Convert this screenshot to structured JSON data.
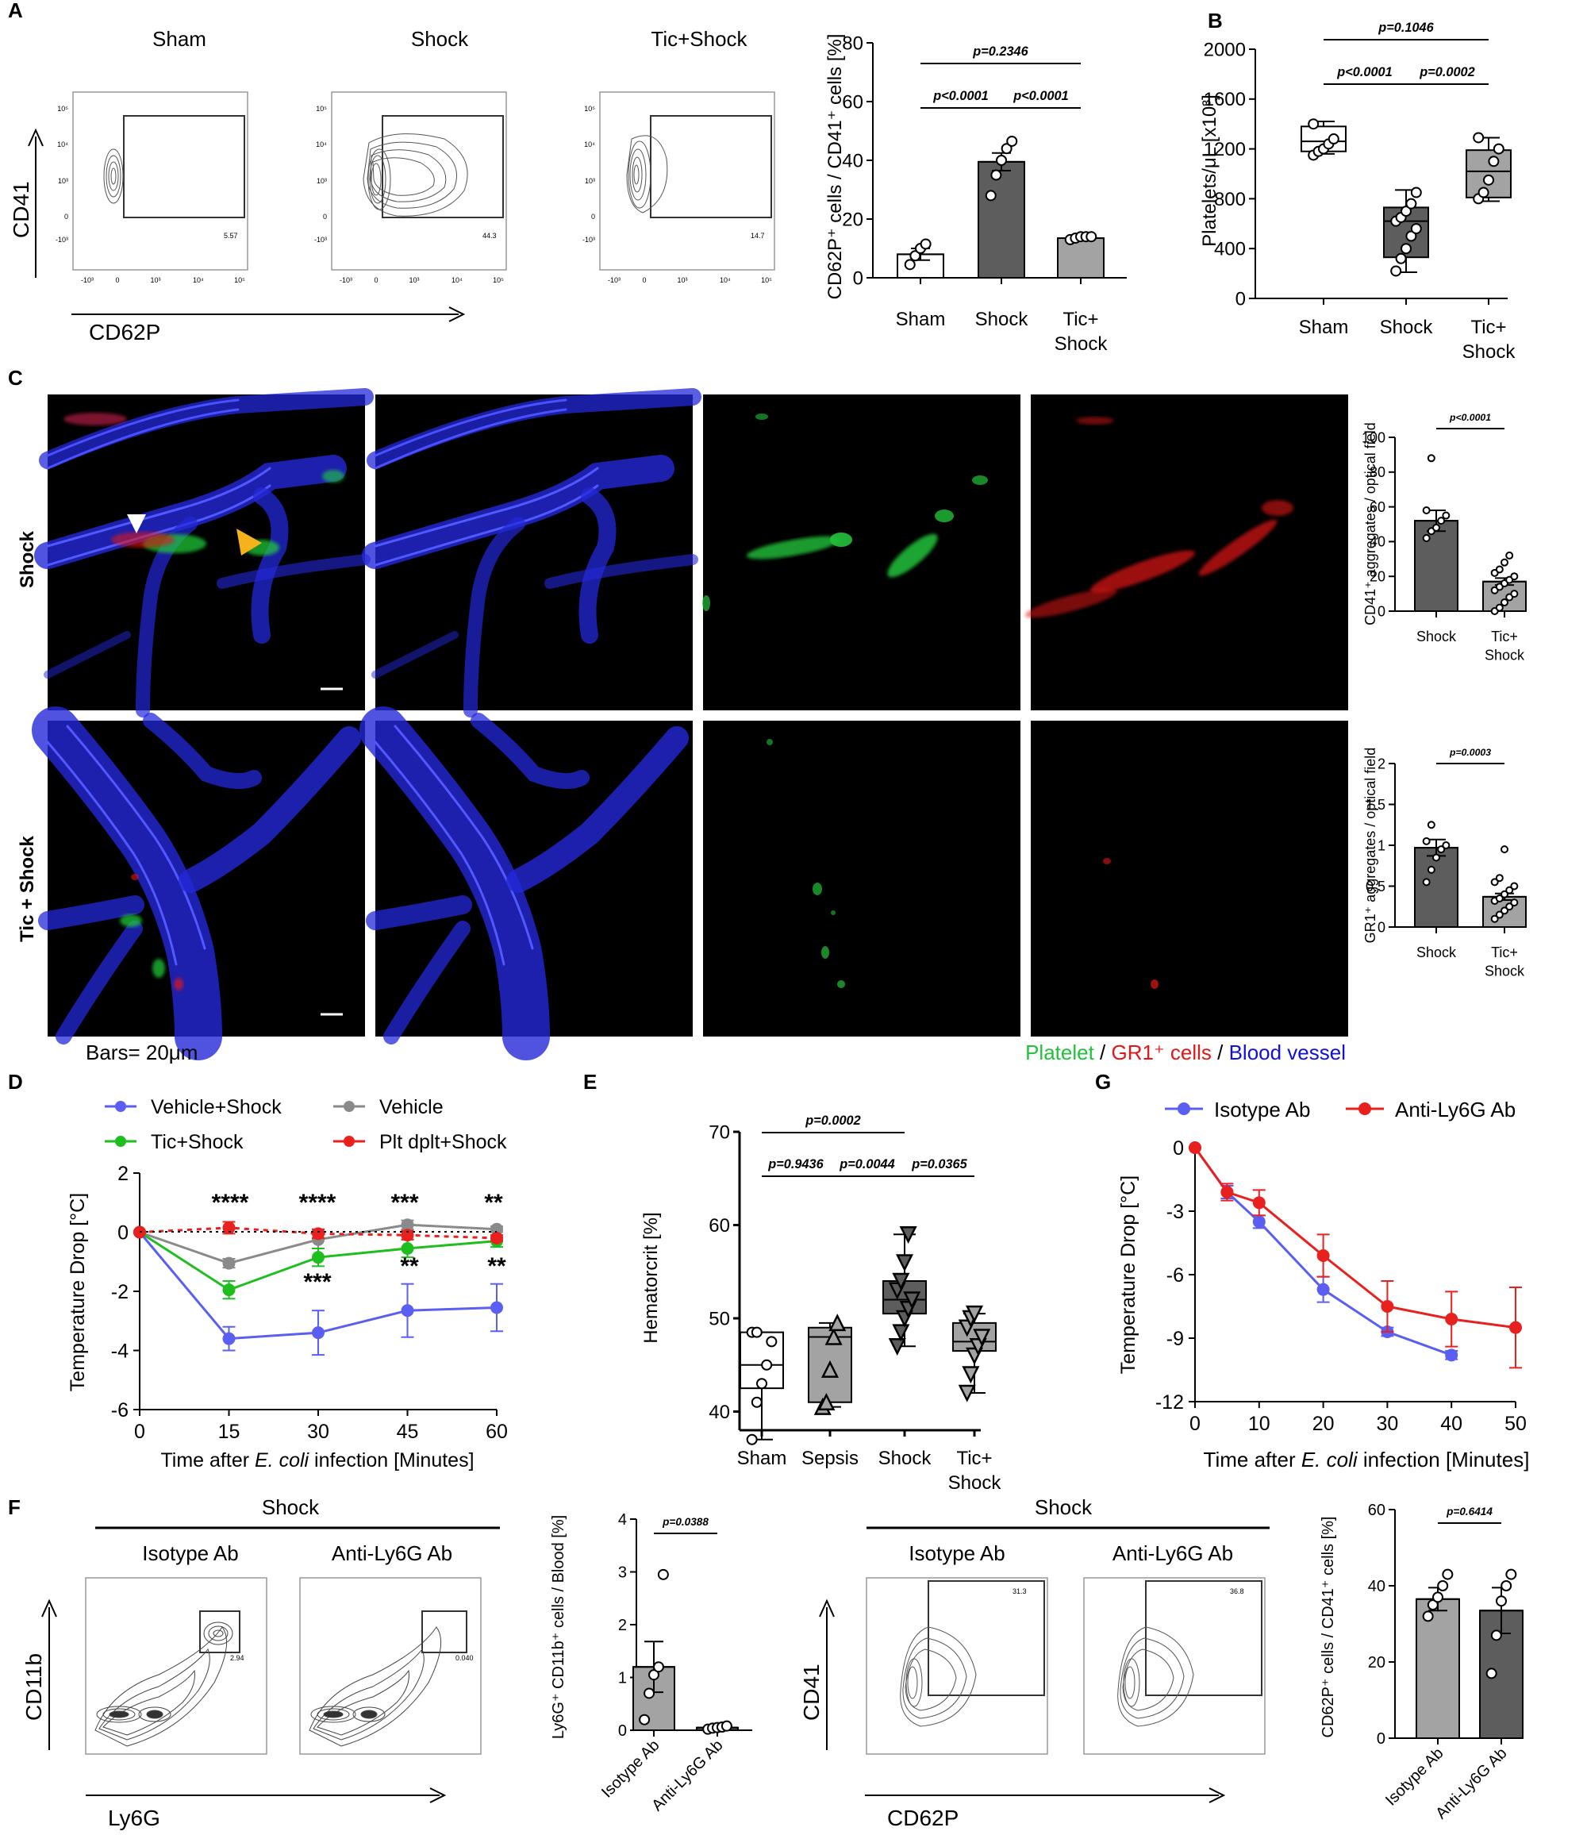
{
  "panel_letters": {
    "A": "A",
    "B": "B",
    "C": "C",
    "D": "D",
    "E": "E",
    "F": "F",
    "G": "G"
  },
  "a": {
    "flow_titles": [
      "Sham",
      "Shock",
      "Tic+Shock"
    ],
    "flow_gates": [
      "5.57",
      "44.3",
      "14.7"
    ],
    "y_axis": "CD41",
    "x_axis": "CD62P",
    "tick_y": [
      "10⁵",
      "10⁴",
      "10³",
      "0",
      "-10³"
    ],
    "tick_x": [
      "-10³",
      "0",
      "10³",
      "10⁴",
      "10⁵"
    ]
  },
  "colors": {
    "white_bar": "#ffffff",
    "dark_bar": "#5d5d5d",
    "light_bar": "#a3a3a3",
    "vehicle_shock": "#5b5ef2",
    "vehicle": "#8a8a8a",
    "tic_shock": "#1fbe1f",
    "plt_shock": "#e8201e",
    "isotype": "#5b5ef2",
    "anti_ly6g": "#e8201e",
    "platelet": "#22c23a",
    "gr1": "#e8201e",
    "vessel": "#1010e0"
  },
  "c": {
    "row_labels": [
      "Shock",
      "Tic + Shock"
    ],
    "bars_label": "Bars= 20μm",
    "legend": [
      "Platelet",
      " / ",
      "GR1⁺ cells",
      " / ",
      "Blood vessel"
    ]
  },
  "d": {
    "legend": [
      "Vehicle+Shock",
      "Vehicle",
      "Tic+Shock",
      "Plt dplt+Shock"
    ],
    "stars_top": [
      "****",
      "****",
      "***",
      "**"
    ],
    "stars_bottom": [
      "***",
      "**",
      "**"
    ],
    "xlabel_pre": "Time after ",
    "xlabel_it": "E. coli",
    "xlabel_post": " infection [Minutes]",
    "ylabel": "Temperature Drop [°C]"
  },
  "e": {
    "ylabel": "Hematorcrit [%]",
    "cats": [
      "Sham",
      "Sepsis",
      "Shock",
      "Tic+",
      "Shock"
    ]
  },
  "g": {
    "legend": [
      "Isotype Ab",
      "Anti-Ly6G Ab"
    ],
    "xlabel_pre": "Time after ",
    "xlabel_it": "E. coli",
    "xlabel_post": " infection [Minutes]",
    "ylabel": "Temperature Drop [°C]"
  },
  "f": {
    "shock": "Shock",
    "flow_titles": [
      "Isotype Ab",
      "Anti-Ly6G Ab"
    ],
    "gates_left": [
      "2.94",
      "0.040"
    ],
    "gates_right": [
      "31.3",
      "36.8"
    ],
    "y_left": "CD11b",
    "x_left": "Ly6G",
    "y_right": "CD41",
    "x_right": "CD62P"
  },
  "chart_data": [
    {
      "id": "A-bar",
      "type": "bar",
      "categories": [
        "Sham",
        "Shock",
        "Tic+ Shock"
      ],
      "values": [
        8,
        39.5,
        13.5
      ],
      "errors": [
        2,
        3,
        0.5
      ],
      "points": [
        [
          4.5,
          7.5,
          10,
          11.5
        ],
        [
          28,
          35,
          40,
          44,
          46.5
        ],
        [
          13,
          13.5,
          14,
          14,
          14
        ]
      ],
      "ylabel": "CD62P⁺ cells / CD41⁺ cells [%]",
      "ylim": [
        0,
        80
      ],
      "yticks": [
        0,
        20,
        40,
        60,
        80
      ],
      "comparisons": [
        {
          "from": 0,
          "to": 2,
          "p": "p=0.2346"
        },
        {
          "from": 0,
          "to": 1,
          "p": "p<0.0001"
        },
        {
          "from": 1,
          "to": 2,
          "p": "p<0.0001"
        }
      ]
    },
    {
      "id": "B-box",
      "type": "box",
      "categories": [
        "Sham",
        "Shock",
        "Tic+ Shock"
      ],
      "boxes": [
        {
          "min": 1160,
          "q1": 1180,
          "median": 1260,
          "q3": 1380,
          "max": 1420
        },
        {
          "min": 210,
          "q1": 330,
          "median": 620,
          "q3": 730,
          "max": 870
        },
        {
          "min": 780,
          "q1": 810,
          "median": 1020,
          "q3": 1190,
          "max": 1290
        }
      ],
      "points": [
        [
          1150,
          1180,
          1200,
          1240,
          1280,
          1400
        ],
        [
          220,
          320,
          400,
          500,
          560,
          620,
          650,
          700,
          760,
          850
        ],
        [
          800,
          850,
          950,
          1100,
          1200,
          1290
        ]
      ],
      "ylabel": "Platelets/μL [x10³]",
      "ylim": [
        0,
        2000
      ],
      "yticks": [
        0,
        400,
        800,
        1200,
        1600,
        2000
      ],
      "comparisons": [
        {
          "from": 0,
          "to": 2,
          "p": "p=0.1046"
        },
        {
          "from": 0,
          "to": 1,
          "p": "p<0.0001"
        },
        {
          "from": 1,
          "to": 2,
          "p": "p=0.0002"
        }
      ]
    },
    {
      "id": "C-bar-top",
      "type": "bar",
      "categories": [
        "Shock",
        "Tic+ Shock"
      ],
      "values": [
        52,
        17
      ],
      "errors": [
        6,
        2
      ],
      "points": [
        [
          42,
          46,
          48,
          52,
          55,
          58,
          88
        ],
        [
          0,
          2,
          5,
          8,
          10,
          12,
          14,
          16,
          18,
          20,
          22,
          24,
          28,
          32
        ]
      ],
      "ylabel": "CD41⁺ aggregates / optical field",
      "ylim": [
        0,
        100
      ],
      "yticks": [
        0,
        20,
        40,
        60,
        80,
        100
      ],
      "comparisons": [
        {
          "from": 0,
          "to": 1,
          "p": "p<0.0001"
        }
      ]
    },
    {
      "id": "C-bar-bottom",
      "type": "bar",
      "categories": [
        "Shock",
        "Tic+ Shock"
      ],
      "values": [
        0.97,
        0.37
      ],
      "errors": [
        0.1,
        0.04
      ],
      "points": [
        [
          0.55,
          0.7,
          0.85,
          0.95,
          1.0,
          1.05,
          1.25
        ],
        [
          0.1,
          0.15,
          0.2,
          0.25,
          0.3,
          0.32,
          0.35,
          0.4,
          0.45,
          0.5,
          0.55,
          0.6,
          0.95
        ]
      ],
      "ylabel": "GR1⁺ aggregates / optical field",
      "ylim": [
        0,
        2
      ],
      "yticks": [
        0,
        0.5,
        1,
        1.5,
        2
      ],
      "comparisons": [
        {
          "from": 0,
          "to": 1,
          "p": "p=0.0003"
        }
      ]
    },
    {
      "id": "D-line",
      "type": "line",
      "x": [
        0,
        15,
        30,
        45,
        60
      ],
      "series": [
        {
          "name": "Vehicle+Shock",
          "values": [
            0,
            -3.6,
            -3.4,
            -2.65,
            -2.55
          ],
          "errors": [
            0,
            0.4,
            0.75,
            0.9,
            0.8
          ]
        },
        {
          "name": "Vehicle",
          "values": [
            0,
            -1.05,
            -0.25,
            0.25,
            0.1
          ],
          "errors": [
            0,
            0.15,
            0.3,
            0.15,
            0.1
          ]
        },
        {
          "name": "Tic+Shock",
          "values": [
            0,
            -1.95,
            -0.85,
            -0.55,
            -0.3
          ],
          "errors": [
            0,
            0.3,
            0.3,
            0.3,
            0.2
          ]
        },
        {
          "name": "Plt dplt+Shock",
          "values": [
            0,
            0.15,
            -0.05,
            -0.1,
            -0.2
          ],
          "errors": [
            0,
            0.2,
            0.15,
            0.15,
            0.1
          ]
        }
      ],
      "xlabel": "Time after E. coli infection [Minutes]",
      "ylabel": "Temperature Drop [°C]",
      "xlim": [
        0,
        60
      ],
      "ylim": [
        -6,
        2
      ],
      "xticks": [
        0,
        15,
        30,
        45,
        60
      ],
      "yticks": [
        -6,
        -4,
        -2,
        0,
        2
      ]
    },
    {
      "id": "E-box",
      "type": "box",
      "categories": [
        "Sham",
        "Sepsis",
        "Shock",
        "Tic+ Shock"
      ],
      "boxes": [
        {
          "min": 37,
          "q1": 42.5,
          "median": 45,
          "q3": 48.5,
          "max": 48.5
        },
        {
          "min": 40.5,
          "q1": 41,
          "median": 48,
          "q3": 49,
          "max": 49.5
        },
        {
          "min": 47,
          "q1": 50.5,
          "median": 52,
          "q3": 54,
          "max": 59
        },
        {
          "min": 42,
          "q1": 46.5,
          "median": 47.5,
          "q3": 49.5,
          "max": 50.5
        }
      ],
      "points": [
        [
          37,
          41,
          43,
          45,
          47.5,
          48.5,
          48.5
        ],
        [
          40.5,
          41,
          44.5,
          48,
          49.5
        ],
        [
          47,
          48.5,
          50,
          51,
          52,
          53,
          54,
          56,
          59
        ],
        [
          42,
          44,
          46,
          47,
          48,
          49,
          50,
          50.5
        ]
      ],
      "ylabel": "Hematorcrit [%]",
      "ylim": [
        38,
        70
      ],
      "yticks": [
        40,
        50,
        60,
        70
      ],
      "comparisons": [
        {
          "from": 0,
          "to": 2,
          "p": "p=0.0002"
        },
        {
          "from": 0,
          "to": 1,
          "p": "p=0.9436"
        },
        {
          "from": 1,
          "to": 2,
          "p": "p=0.0044"
        },
        {
          "from": 2,
          "to": 3,
          "p": "p=0.0365"
        }
      ]
    },
    {
      "id": "G-line",
      "type": "line",
      "series": [
        {
          "name": "Isotype Ab",
          "x": [
            0,
            5,
            10,
            20,
            30,
            40
          ],
          "values": [
            0,
            -2.1,
            -3.5,
            -6.7,
            -8.7,
            -9.8
          ],
          "errors": [
            0,
            0.3,
            0.3,
            0.6,
            0.2,
            0.2
          ]
        },
        {
          "name": "Anti-Ly6G Ab",
          "x": [
            0,
            5,
            10,
            20,
            30,
            40,
            50
          ],
          "values": [
            0,
            -2.1,
            -2.6,
            -5.1,
            -7.5,
            -8.1,
            -8.5
          ],
          "errors": [
            0,
            0.4,
            0.6,
            1.0,
            1.2,
            1.3,
            1.9
          ]
        }
      ],
      "xlabel": "Time after E. coli infection [Minutes]",
      "ylabel": "Temperature Drop [°C]",
      "xlim": [
        0,
        50
      ],
      "ylim": [
        -12,
        0
      ],
      "xticks": [
        0,
        10,
        20,
        30,
        40,
        50
      ],
      "yticks": [
        0,
        -3,
        -6,
        -9,
        -12
      ]
    },
    {
      "id": "F-bar-left",
      "type": "bar",
      "categories": [
        "Isotype Ab",
        "Anti-Ly6G Ab"
      ],
      "values": [
        1.2,
        0.05
      ],
      "errors": [
        0.48,
        0.02
      ],
      "points": [
        [
          0.2,
          0.7,
          1.05,
          1.2,
          2.95
        ],
        [
          0.02,
          0.04,
          0.05,
          0.06,
          0.08
        ]
      ],
      "ylabel": "Ly6G⁺ CD11b⁺ cells / Blood [%]",
      "ylim": [
        0,
        4
      ],
      "yticks": [
        0,
        1,
        2,
        3,
        4
      ],
      "comparisons": [
        {
          "from": 0,
          "to": 1,
          "p": "p=0.0388"
        }
      ]
    },
    {
      "id": "F-bar-right",
      "type": "bar",
      "categories": [
        "Isotype Ab",
        "Anti-Ly6G Ab"
      ],
      "values": [
        36.5,
        33.5
      ],
      "errors": [
        3,
        6
      ],
      "points": [
        [
          32,
          35,
          37,
          40,
          43
        ],
        [
          17,
          27,
          36,
          40,
          43
        ]
      ],
      "ylabel": "CD62P⁺ cells / CD41⁺ cells [%]",
      "ylim": [
        0,
        60
      ],
      "yticks": [
        0,
        20,
        40,
        60
      ],
      "comparisons": [
        {
          "from": 0,
          "to": 1,
          "p": "p=0.6414"
        }
      ]
    }
  ]
}
